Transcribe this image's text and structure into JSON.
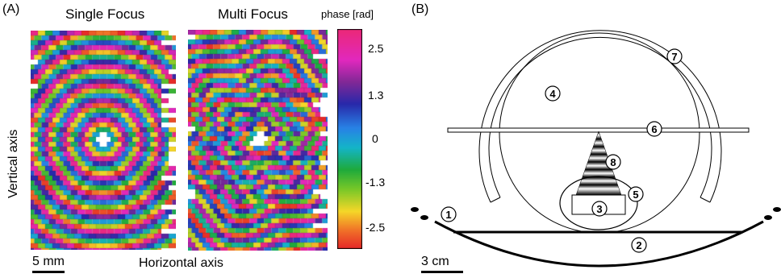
{
  "panel_a": {
    "label": "(A)",
    "single_title": "Single Focus",
    "multi_title": "Multi Focus",
    "colorbar_title": "phase [rad]",
    "colorbar_ticks": [
      "2.5",
      "1.3",
      "0",
      "-1.3",
      "-2.5"
    ],
    "vertical_axis": "Vertical axis",
    "horizontal_axis": "Horizontal axis",
    "scale_bar": "5 mm"
  },
  "panel_b": {
    "label": "(B)",
    "scale_bar": "3 cm",
    "numbers": [
      "1",
      "2",
      "3",
      "4",
      "5",
      "6",
      "7",
      "8"
    ]
  }
}
